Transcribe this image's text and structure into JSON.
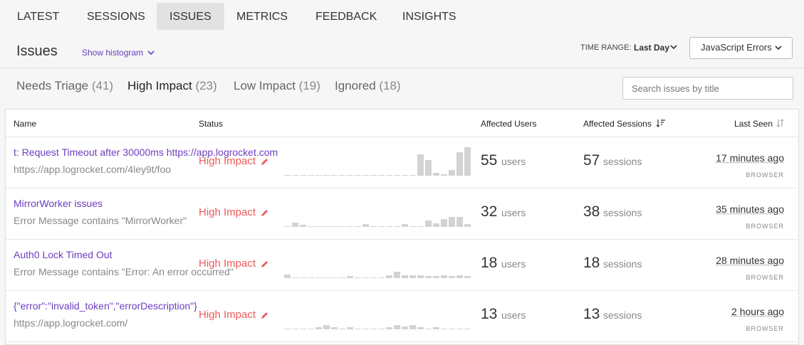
{
  "nav": {
    "tabs": [
      "LATEST",
      "SESSIONS",
      "ISSUES",
      "METRICS",
      "FEEDBACK",
      "INSIGHTS"
    ],
    "active": 2
  },
  "header": {
    "title": "Issues",
    "histogram_toggle": "Show histogram",
    "time_range_label": "TIME RANGE:",
    "time_range": "Last Day",
    "error_type": "JavaScript Errors"
  },
  "filters": [
    {
      "label": "Needs Triage",
      "count": "(41)"
    },
    {
      "label": "High Impact",
      "count": "(23)"
    },
    {
      "label": "Low Impact",
      "count": "(19)"
    },
    {
      "label": "Ignored",
      "count": "(18)"
    }
  ],
  "active_filter": 1,
  "search_placeholder": "Search issues by title",
  "table": {
    "columns": [
      "Name",
      "Status",
      "Affected Users",
      "Affected Sessions",
      "Last Seen"
    ],
    "rows": [
      {
        "title": "t: Request Timeout after 30000ms https://app.logrocket.com",
        "subtitle": "https://app.logrocket.com/4ley9t/foo",
        "status": "High Impact",
        "histogram": [
          1,
          1,
          1,
          1,
          1,
          1,
          1,
          1,
          1,
          1,
          1,
          1,
          1,
          1,
          1,
          1,
          1,
          30,
          22,
          4,
          2,
          8,
          33,
          40
        ],
        "users": 55,
        "users_unit": "users",
        "sessions": 57,
        "sessions_unit": "sessions",
        "last_seen": "17 minutes ago",
        "source": "BROWSER"
      },
      {
        "title": "MirrorWorker issues",
        "subtitle": "Error Message contains \"MirrorWorker\"",
        "status": "High Impact",
        "histogram": [
          1,
          6,
          3,
          1,
          1,
          1,
          1,
          1,
          1,
          1,
          4,
          1,
          1,
          1,
          1,
          4,
          1,
          1,
          9,
          5,
          11,
          14,
          14,
          4
        ],
        "users": 32,
        "users_unit": "users",
        "sessions": 38,
        "sessions_unit": "sessions",
        "last_seen": "35 minutes ago",
        "source": "BROWSER"
      },
      {
        "title": "Auth0 Lock Timed Out",
        "subtitle": "Error Message contains \"Error: An error occurred\"",
        "status": "High Impact",
        "histogram": [
          5,
          1,
          1,
          1,
          1,
          1,
          1,
          1,
          3,
          1,
          1,
          1,
          1,
          4,
          9,
          4,
          4,
          4,
          3,
          3,
          4,
          3,
          4,
          3
        ],
        "users": 18,
        "users_unit": "users",
        "sessions": 18,
        "sessions_unit": "sessions",
        "last_seen": "28 minutes ago",
        "source": "BROWSER"
      },
      {
        "title": "{\"error\":\"invalid_token\",\"errorDescription\"}",
        "subtitle": "https://app.logrocket.com/",
        "status": "High Impact",
        "histogram": [
          1,
          1,
          1,
          1,
          3,
          6,
          3,
          1,
          3,
          1,
          1,
          1,
          1,
          3,
          6,
          4,
          6,
          3,
          1,
          3,
          1,
          1,
          1,
          1
        ],
        "users": 13,
        "users_unit": "users",
        "sessions": 13,
        "sessions_unit": "sessions",
        "last_seen": "2 hours ago",
        "source": "BROWSER"
      }
    ]
  }
}
